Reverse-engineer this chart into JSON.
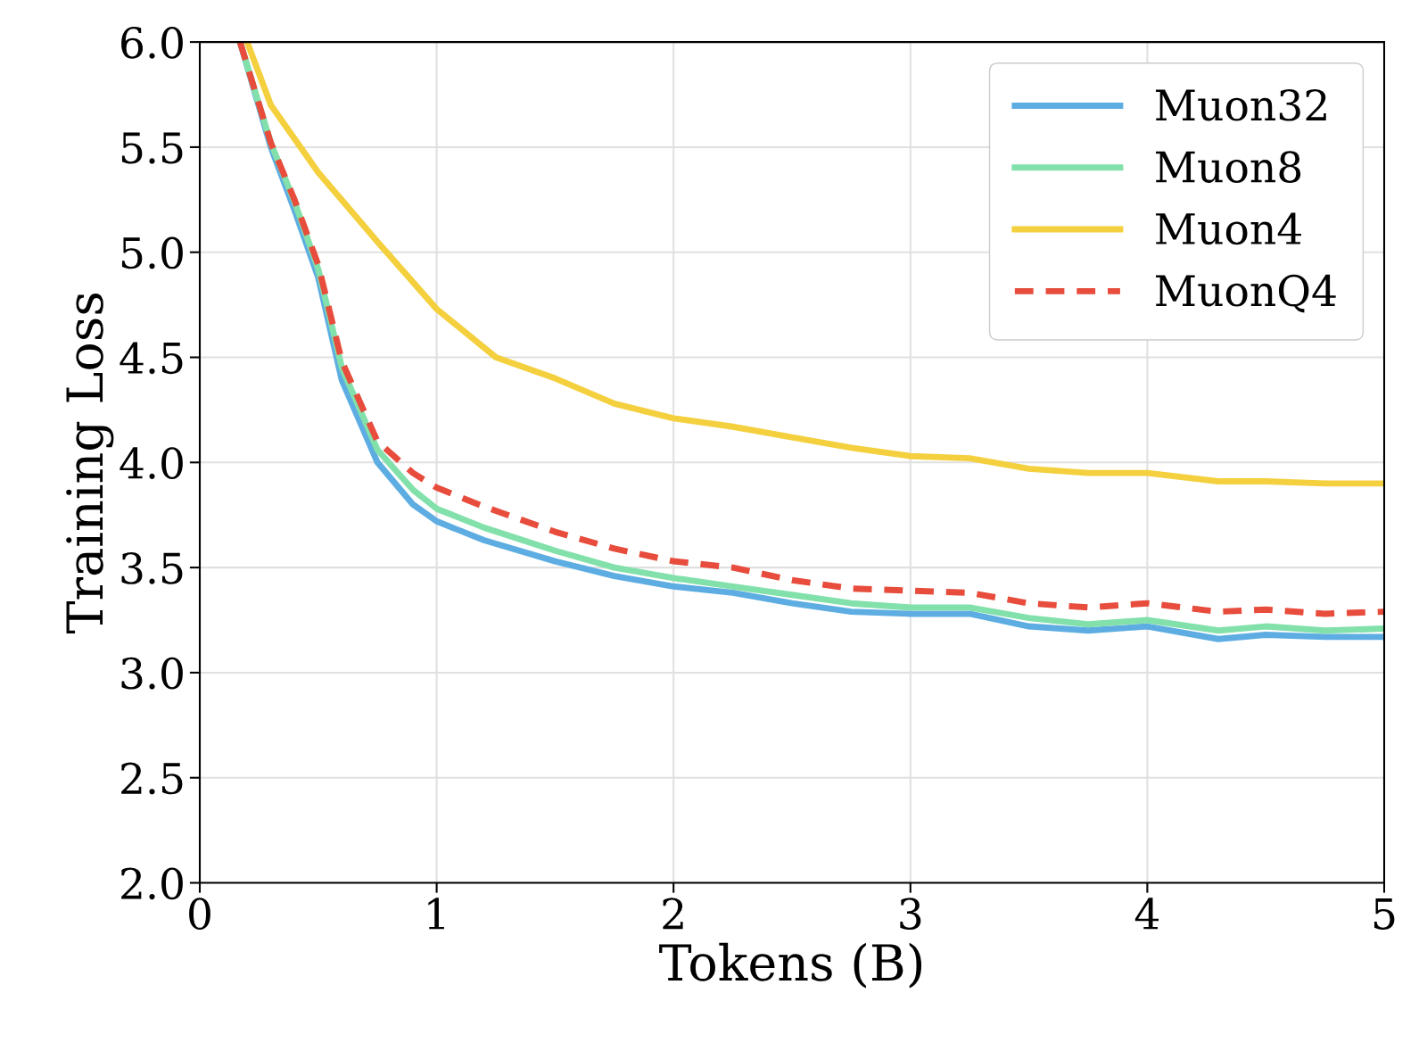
{
  "chart_data": {
    "type": "line",
    "xlabel": "Tokens (B)",
    "ylabel": "Training Loss",
    "xlim": [
      0,
      5
    ],
    "ylim": [
      2.0,
      6.0
    ],
    "xticks": [
      0,
      1,
      2,
      3,
      4,
      5
    ],
    "yticks": [
      {
        "value": 2.0,
        "label": "2.0"
      },
      {
        "value": 2.5,
        "label": "2.5"
      },
      {
        "value": 3.0,
        "label": "3.0"
      },
      {
        "value": 3.5,
        "label": "3.5"
      },
      {
        "value": 4.0,
        "label": "4.0"
      },
      {
        "value": 4.5,
        "label": "4.5"
      },
      {
        "value": 5.0,
        "label": "5.0"
      },
      {
        "value": 5.5,
        "label": "5.5"
      },
      {
        "value": 6.0,
        "label": "6.0"
      }
    ],
    "grid": true,
    "legend": "top right",
    "marker": "none",
    "series": [
      {
        "name": "Muon32",
        "color": "#5dade2",
        "line_style": "solid",
        "x": [
          0.17,
          0.3,
          0.4,
          0.5,
          0.6,
          0.75,
          0.9,
          1.0,
          1.2,
          1.5,
          1.75,
          2.0,
          2.25,
          2.5,
          2.75,
          3.0,
          3.25,
          3.5,
          3.75,
          4.0,
          4.3,
          4.5,
          4.75,
          5.0
        ],
        "values": [
          6.0,
          5.5,
          5.2,
          4.88,
          4.39,
          4.0,
          3.8,
          3.72,
          3.63,
          3.53,
          3.46,
          3.41,
          3.38,
          3.33,
          3.29,
          3.28,
          3.28,
          3.22,
          3.2,
          3.22,
          3.16,
          3.18,
          3.17,
          3.17
        ]
      },
      {
        "name": "Muon8",
        "color": "#82e0aa",
        "line_style": "solid",
        "x": [
          0.17,
          0.3,
          0.4,
          0.5,
          0.6,
          0.75,
          0.9,
          1.0,
          1.2,
          1.5,
          1.75,
          2.0,
          2.25,
          2.5,
          2.75,
          3.0,
          3.25,
          3.5,
          3.75,
          4.0,
          4.3,
          4.5,
          4.75,
          5.0
        ],
        "values": [
          6.0,
          5.52,
          5.24,
          4.92,
          4.45,
          4.06,
          3.87,
          3.78,
          3.69,
          3.58,
          3.5,
          3.45,
          3.41,
          3.37,
          3.33,
          3.31,
          3.31,
          3.26,
          3.23,
          3.25,
          3.2,
          3.22,
          3.2,
          3.21
        ]
      },
      {
        "name": "Muon4",
        "color": "#f4d03f",
        "line_style": "solid",
        "x": [
          0.2,
          0.3,
          0.5,
          0.75,
          1.0,
          1.25,
          1.5,
          1.75,
          2.0,
          2.25,
          2.5,
          2.75,
          3.0,
          3.25,
          3.5,
          3.75,
          4.0,
          4.3,
          4.5,
          4.75,
          5.0
        ],
        "values": [
          6.0,
          5.7,
          5.38,
          5.05,
          4.73,
          4.5,
          4.4,
          4.28,
          4.21,
          4.17,
          4.12,
          4.07,
          4.03,
          4.02,
          3.97,
          3.95,
          3.95,
          3.91,
          3.91,
          3.9,
          3.9
        ]
      },
      {
        "name": "MuonQ4",
        "color": "#e74c3c",
        "line_style": "dashed",
        "x": [
          0.17,
          0.3,
          0.4,
          0.5,
          0.6,
          0.75,
          0.9,
          1.0,
          1.2,
          1.5,
          1.75,
          2.0,
          2.25,
          2.5,
          2.75,
          3.0,
          3.25,
          3.5,
          3.75,
          4.0,
          4.3,
          4.5,
          4.75,
          5.0
        ],
        "values": [
          6.0,
          5.52,
          5.25,
          4.94,
          4.48,
          4.1,
          3.95,
          3.88,
          3.79,
          3.67,
          3.59,
          3.53,
          3.5,
          3.44,
          3.4,
          3.39,
          3.38,
          3.33,
          3.31,
          3.33,
          3.29,
          3.3,
          3.28,
          3.29
        ]
      }
    ]
  }
}
